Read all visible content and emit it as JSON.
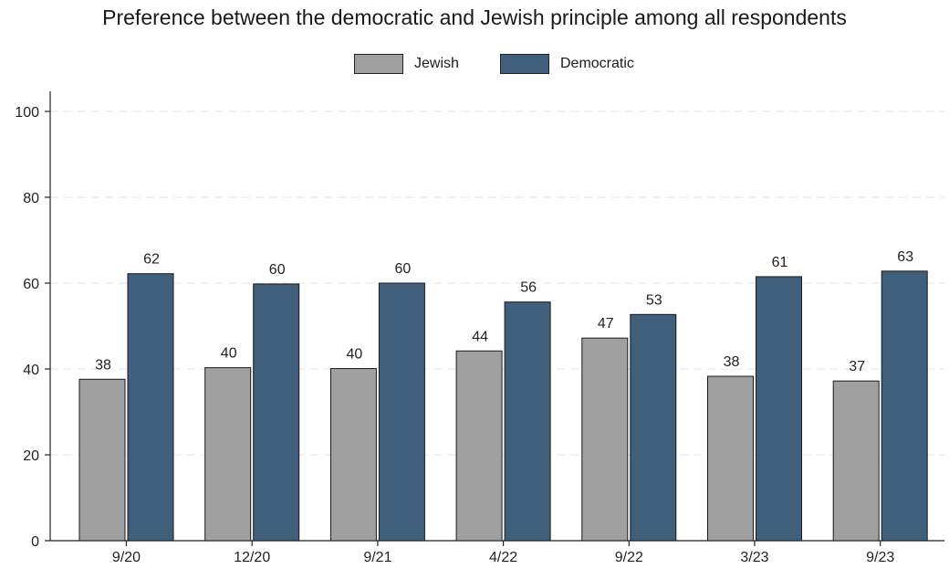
{
  "chart_data": {
    "type": "bar",
    "title": "Preference between the democratic and Jewish principle among all respondents",
    "categories": [
      "9/20",
      "12/20",
      "9/21",
      "4/22",
      "9/22",
      "3/23",
      "9/23"
    ],
    "series": [
      {
        "name": "Jewish",
        "color": "#a0a0a0",
        "values": [
          38,
          40,
          40,
          44,
          47,
          38,
          37
        ]
      },
      {
        "name": "Democratic",
        "color": "#405f7a",
        "values": [
          62,
          60,
          60,
          56,
          53,
          61,
          63
        ]
      }
    ],
    "value_precision": 1,
    "bar_heights": {
      "Jewish": [
        37.6,
        40.3,
        40.1,
        44.2,
        47.2,
        38.3,
        37.2
      ],
      "Democratic": [
        62.2,
        59.8,
        60.0,
        55.6,
        52.7,
        61.5,
        62.8
      ]
    },
    "xlabel": "",
    "ylabel": "",
    "ylim": [
      0,
      100
    ],
    "yticks": [
      0,
      20,
      40,
      60,
      80,
      100
    ],
    "grid": true,
    "legend_position": "top-center"
  }
}
